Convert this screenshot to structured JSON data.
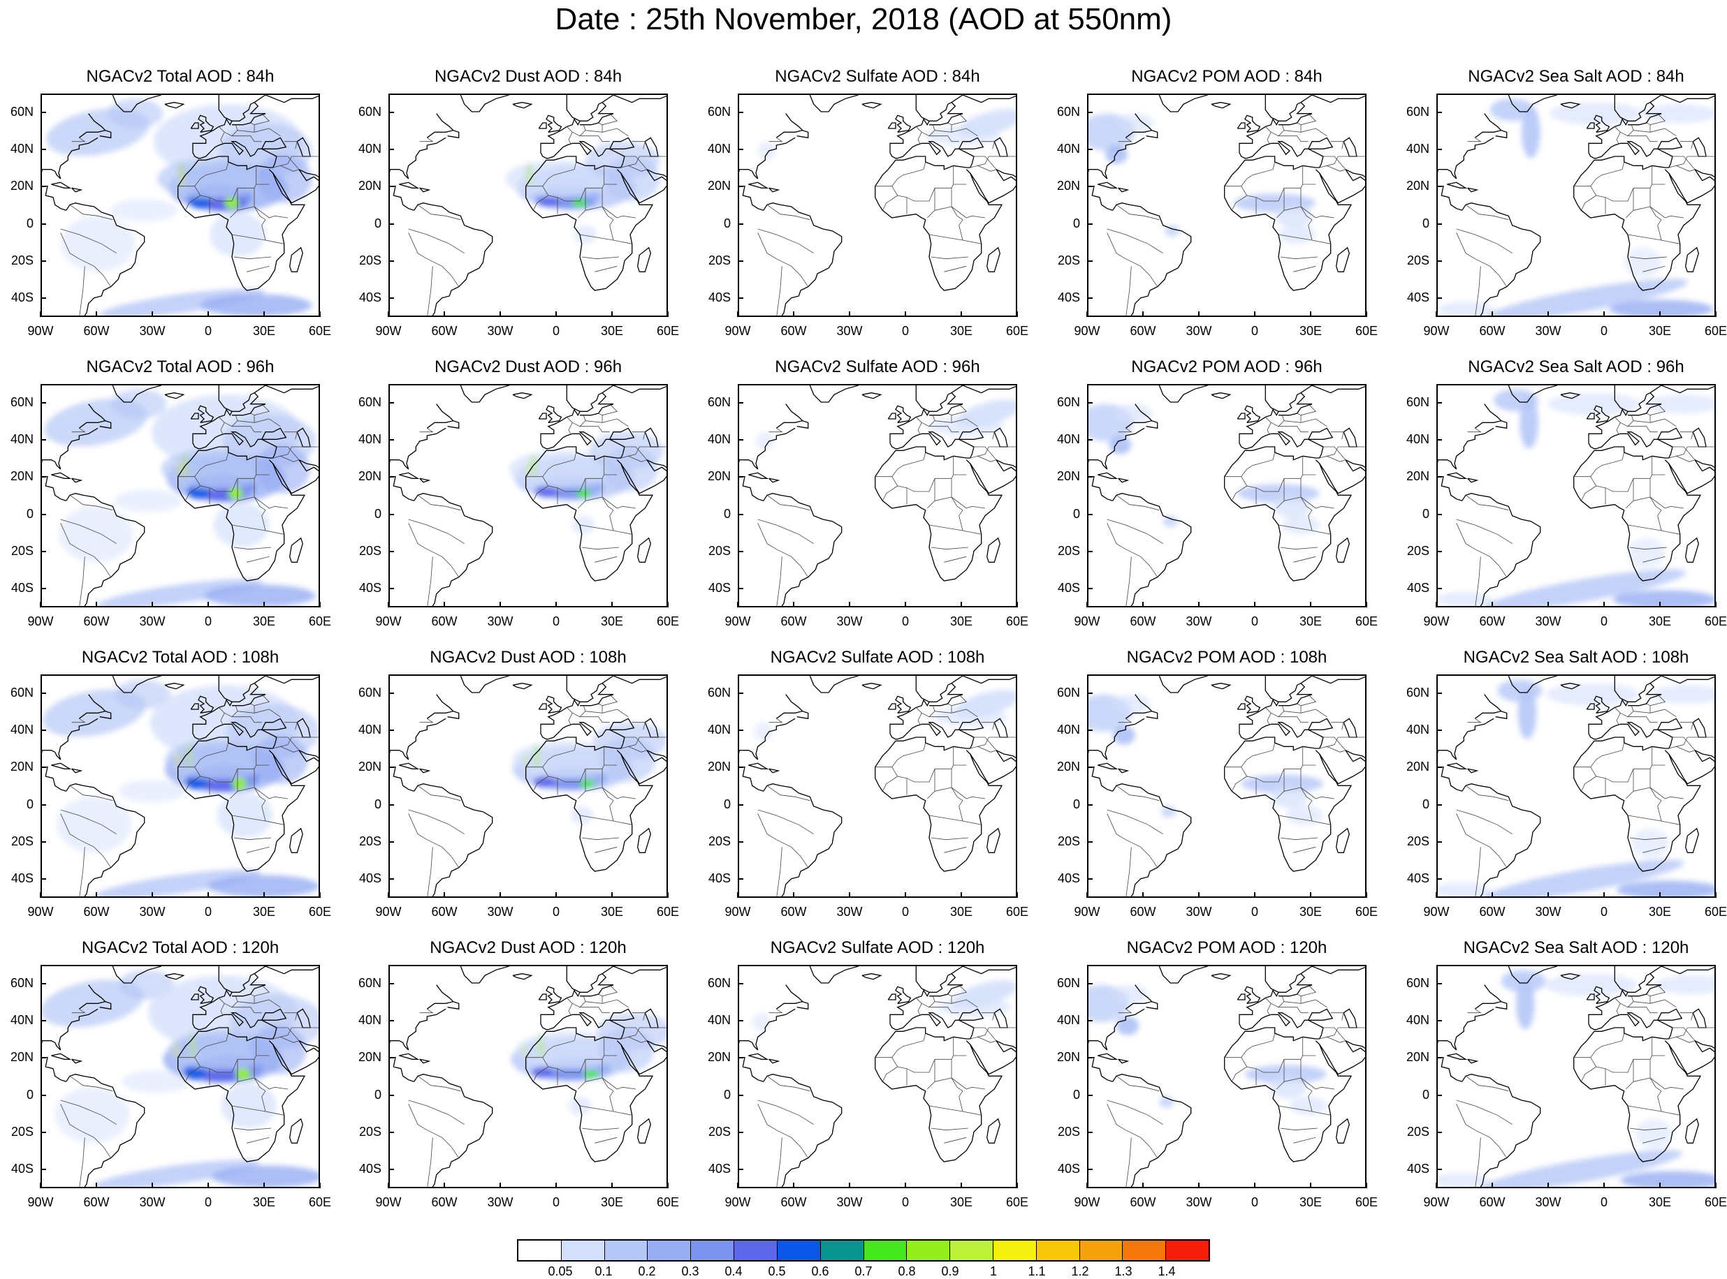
{
  "title": "Date : 25th November, 2018 (AOD at 550nm)",
  "lat_ticks": [
    "60N",
    "40N",
    "20N",
    "0",
    "20S",
    "40S"
  ],
  "lon_ticks": [
    "90W",
    "60W",
    "30W",
    "0",
    "30E",
    "60E"
  ],
  "map_extent": {
    "lon": [
      -90,
      60
    ],
    "lat": [
      -50,
      70
    ]
  },
  "panels": [
    {
      "label": "NGACv2 Total AOD : 84h",
      "species": "total",
      "hour": 84
    },
    {
      "label": "NGACv2 Dust AOD : 84h",
      "species": "dust",
      "hour": 84
    },
    {
      "label": "NGACv2 Sulfate AOD : 84h",
      "species": "sulfate",
      "hour": 84
    },
    {
      "label": "NGACv2 POM AOD : 84h",
      "species": "pom",
      "hour": 84
    },
    {
      "label": "NGACv2 Sea Salt AOD : 84h",
      "species": "seasalt",
      "hour": 84
    },
    {
      "label": "NGACv2 Total AOD : 96h",
      "species": "total",
      "hour": 96
    },
    {
      "label": "NGACv2 Dust AOD : 96h",
      "species": "dust",
      "hour": 96
    },
    {
      "label": "NGACv2 Sulfate AOD : 96h",
      "species": "sulfate",
      "hour": 96
    },
    {
      "label": "NGACv2 POM AOD : 96h",
      "species": "pom",
      "hour": 96
    },
    {
      "label": "NGACv2 Sea Salt AOD : 96h",
      "species": "seasalt",
      "hour": 96
    },
    {
      "label": "NGACv2 Total AOD : 108h",
      "species": "total",
      "hour": 108
    },
    {
      "label": "NGACv2 Dust AOD : 108h",
      "species": "dust",
      "hour": 108
    },
    {
      "label": "NGACv2 Sulfate AOD : 108h",
      "species": "sulfate",
      "hour": 108
    },
    {
      "label": "NGACv2 POM AOD : 108h",
      "species": "pom",
      "hour": 108
    },
    {
      "label": "NGACv2 Sea Salt AOD : 108h",
      "species": "seasalt",
      "hour": 108
    },
    {
      "label": "NGACv2 Total AOD : 120h",
      "species": "total",
      "hour": 120
    },
    {
      "label": "NGACv2 Dust AOD : 120h",
      "species": "dust",
      "hour": 120
    },
    {
      "label": "NGACv2 Sulfate AOD : 120h",
      "species": "sulfate",
      "hour": 120
    },
    {
      "label": "NGACv2 POM AOD : 120h",
      "species": "pom",
      "hour": 120
    },
    {
      "label": "NGACv2 Sea Salt  AOD : 120h",
      "species": "seasalt",
      "hour": 120
    }
  ],
  "colorbar": {
    "labels": [
      "0.05",
      "0.1",
      "0.2",
      "0.3",
      "0.4",
      "0.5",
      "0.6",
      "0.7",
      "0.8",
      "0.9",
      "1",
      "1.1",
      "1.2",
      "1.3",
      "1.4"
    ],
    "colors": [
      "#ffffff",
      "#d4e0fb",
      "#b5c7f7",
      "#97aef3",
      "#7d94ee",
      "#5c67ea",
      "#0c57e8",
      "#0a9490",
      "#44e81d",
      "#93ee1c",
      "#bdf23a",
      "#f5f20f",
      "#f7c70a",
      "#f5a30a",
      "#f5780a",
      "#f41e0a"
    ]
  }
}
